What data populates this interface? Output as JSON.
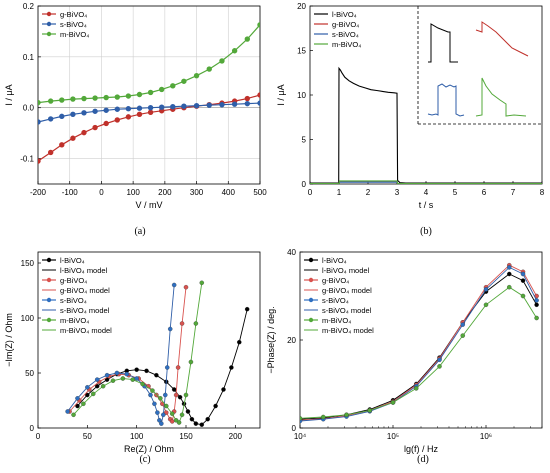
{
  "chart_data": [
    {
      "type": "line",
      "panel_label": "(a)",
      "xlabel": "V / mV",
      "ylabel": "I / μA",
      "xlim": [
        -200,
        500
      ],
      "ylim": [
        -0.15,
        0.2
      ],
      "xticks": [
        "-200",
        "-100",
        "0",
        "100",
        "200",
        "300",
        "400",
        "500"
      ],
      "yticks": [
        "-0.1",
        "0.0",
        "0.1",
        "0.2"
      ],
      "grid": true,
      "legend_position": "top-left",
      "series": [
        {
          "name": "g-BiVO₄",
          "color": "#c0312b",
          "x": [
            -200,
            -160,
            -125,
            -90,
            -55,
            -20,
            15,
            50,
            85,
            120,
            155,
            190,
            225,
            260,
            300,
            340,
            380,
            420,
            460,
            500
          ],
          "y": [
            -0.105,
            -0.088,
            -0.073,
            -0.06,
            -0.049,
            -0.039,
            -0.031,
            -0.024,
            -0.018,
            -0.013,
            -0.009,
            -0.006,
            -0.003,
            0.0,
            0.003,
            0.006,
            0.009,
            0.013,
            0.018,
            0.025
          ]
        },
        {
          "name": "s-BiVO₄",
          "color": "#2f5ea8",
          "x": [
            -200,
            -160,
            -125,
            -90,
            -55,
            -20,
            15,
            50,
            85,
            120,
            155,
            190,
            225,
            260,
            300,
            340,
            380,
            420,
            460,
            500
          ],
          "y": [
            -0.028,
            -0.022,
            -0.017,
            -0.013,
            -0.01,
            -0.007,
            -0.005,
            -0.003,
            -0.002,
            -0.001,
            0.0,
            0.001,
            0.002,
            0.003,
            0.004,
            0.005,
            0.006,
            0.007,
            0.008,
            0.009
          ]
        },
        {
          "name": "m-BiVO₄",
          "color": "#53a83a",
          "x": [
            -200,
            -160,
            -125,
            -90,
            -55,
            -20,
            15,
            50,
            85,
            120,
            155,
            190,
            225,
            260,
            300,
            340,
            380,
            420,
            460,
            500
          ],
          "y": [
            0.01,
            0.013,
            0.015,
            0.017,
            0.018,
            0.019,
            0.02,
            0.021,
            0.023,
            0.026,
            0.03,
            0.036,
            0.043,
            0.052,
            0.063,
            0.076,
            0.092,
            0.112,
            0.135,
            0.163
          ]
        }
      ]
    },
    {
      "type": "line",
      "panel_label": "(b)",
      "xlabel": "t / s",
      "ylabel": "I / μA",
      "xlim": [
        0,
        8
      ],
      "ylim": [
        0,
        20
      ],
      "xticks": [
        "0",
        "1",
        "2",
        "3",
        "4",
        "5",
        "6",
        "7",
        "8"
      ],
      "yticks": [
        "0",
        "5",
        "10",
        "15",
        "20"
      ],
      "grid": false,
      "legend_position": "top-left",
      "series": [
        {
          "name": "l-BiVO₄",
          "color": "#000000",
          "x": [
            0,
            0.99,
            1.0,
            1.05,
            1.1,
            1.2,
            1.35,
            1.5,
            1.7,
            1.9,
            2.1,
            2.3,
            2.5,
            2.7,
            2.9,
            3.0,
            3.02,
            3.1,
            3.3,
            8
          ],
          "y": [
            0.1,
            0.1,
            13.0,
            12.8,
            12.5,
            12.0,
            11.6,
            11.3,
            11.0,
            10.8,
            10.6,
            10.5,
            10.4,
            10.3,
            10.25,
            10.2,
            0.4,
            0.15,
            0.1,
            0.1
          ]
        },
        {
          "name": "g-BiVO₄",
          "color": "#c0312b",
          "x": [
            0,
            1.0,
            1.02,
            3.0,
            3.02,
            8
          ],
          "y": [
            0.05,
            0.05,
            0.3,
            0.3,
            0.05,
            0.05
          ]
        },
        {
          "name": "s-BiVO₄",
          "color": "#2f5ea8",
          "x": [
            0,
            1.0,
            1.02,
            3.0,
            3.02,
            8
          ],
          "y": [
            0.05,
            0.05,
            0.2,
            0.2,
            0.05,
            0.05
          ]
        },
        {
          "name": "m-BiVO₄",
          "color": "#53a83a",
          "x": [
            0,
            1.0,
            1.02,
            3.0,
            3.02,
            8
          ],
          "y": [
            0.05,
            0.05,
            0.35,
            0.35,
            0.05,
            0.05
          ]
        }
      ]
    },
    {
      "type": "scatter",
      "panel_label": "(c)",
      "xlabel": "Re(Z) / Ohm",
      "ylabel": "−Im(Z) / Ohm",
      "xlim": [
        0,
        225
      ],
      "ylim": [
        0,
        160
      ],
      "xticks": [
        "0",
        "50",
        "100",
        "150",
        "200"
      ],
      "yticks": [
        "0",
        "50",
        "100",
        "150"
      ],
      "grid": false,
      "legend_position": "top-left",
      "series": [
        {
          "name": "l-BiVO₄",
          "model_name": "l-BiVO₄ model",
          "color": "#000000",
          "model_color": "#000000",
          "x": [
            40,
            50,
            60,
            70,
            80,
            90,
            100,
            110,
            120,
            130,
            138,
            144,
            148,
            152,
            156,
            160,
            166,
            172,
            180,
            188,
            196,
            204,
            212
          ],
          "y": [
            20,
            30,
            38,
            44,
            49,
            52,
            53,
            52,
            48,
            42,
            35,
            28,
            22,
            15,
            8,
            4,
            3,
            8,
            20,
            35,
            55,
            78,
            108
          ]
        },
        {
          "name": "g-BiVO₄",
          "model_name": "g-BiVO₄ model",
          "color": "#d9534f",
          "model_color": "#d9534f",
          "x": [
            32,
            42,
            52,
            62,
            72,
            82,
            92,
            102,
            112,
            120,
            126,
            130,
            134,
            136,
            138,
            140,
            142,
            146,
            150
          ],
          "y": [
            15,
            25,
            35,
            42,
            47,
            49,
            48,
            45,
            38,
            30,
            22,
            14,
            8,
            6,
            15,
            30,
            55,
            95,
            128
          ]
        },
        {
          "name": "s-BiVO₄",
          "model_name": "s-BiVO₄ model",
          "color": "#2f6fc0",
          "model_color": "#2f5ea8",
          "x": [
            30,
            40,
            50,
            60,
            70,
            80,
            90,
            100,
            108,
            114,
            118,
            121,
            123,
            125,
            127,
            129,
            131,
            134,
            138
          ],
          "y": [
            15,
            27,
            37,
            44,
            48,
            50,
            49,
            45,
            38,
            30,
            22,
            14,
            7,
            4,
            12,
            30,
            55,
            90,
            130
          ]
        },
        {
          "name": "m-BiVO₄",
          "model_name": "m-BiVO₄ model",
          "color": "#53a83a",
          "model_color": "#53a83a",
          "x": [
            36,
            46,
            56,
            66,
            76,
            86,
            96,
            106,
            116,
            124,
            130,
            136,
            140,
            143,
            146,
            150,
            155,
            160,
            166
          ],
          "y": [
            12,
            22,
            31,
            38,
            43,
            45,
            44,
            40,
            34,
            27,
            20,
            13,
            7,
            5,
            12,
            30,
            60,
            95,
            132
          ]
        }
      ]
    },
    {
      "type": "scatter",
      "panel_label": "(d)",
      "xlabel": "lg(f) / Hz",
      "ylabel": "−Phase(Z) / deg.",
      "x_scale": "log",
      "xlim": [
        10000,
        4000000
      ],
      "ylim": [
        0,
        40
      ],
      "xticks": [
        "10⁴",
        "10⁵",
        "10⁶"
      ],
      "yticks": [
        "0",
        "20",
        "40"
      ],
      "grid": false,
      "legend_position": "top-left",
      "series": [
        {
          "name": "l-BiVO₄",
          "model_name": "l-BiVO₄ model",
          "color": "#000000",
          "model_color": "#000000",
          "x": [
            10000,
            17782,
            31623,
            56234,
            100000,
            177828,
            316228,
            562341,
            1000000,
            1778279,
            2500000,
            3500000
          ],
          "y": [
            2.0,
            2.3,
            3.0,
            4.2,
            6.3,
            10.0,
            16.0,
            24.0,
            31.0,
            35.0,
            33.5,
            28.0
          ]
        },
        {
          "name": "g-BiVO₄",
          "model_name": "g-BiVO₄ model",
          "color": "#d9534f",
          "model_color": "#d9534f",
          "x": [
            10000,
            17782,
            31623,
            56234,
            100000,
            177828,
            316228,
            562341,
            1000000,
            1778279,
            2500000,
            3500000
          ],
          "y": [
            1.8,
            2.1,
            2.8,
            4.0,
            6.0,
            9.8,
            15.8,
            24.0,
            32.0,
            37.0,
            35.5,
            30.0
          ]
        },
        {
          "name": "s-BiVO₄",
          "model_name": "s-BiVO₄ model",
          "color": "#2f6fc0",
          "model_color": "#2f5ea8",
          "x": [
            10000,
            17782,
            31623,
            56234,
            100000,
            177828,
            316228,
            562341,
            1000000,
            1778279,
            2500000,
            3500000
          ],
          "y": [
            1.6,
            2.0,
            2.6,
            3.8,
            5.8,
            9.5,
            15.5,
            23.5,
            31.5,
            36.5,
            35.0,
            29.0
          ]
        },
        {
          "name": "m-BiVO₄",
          "model_name": "m-BiVO₄ model",
          "color": "#53a83a",
          "model_color": "#53a83a",
          "x": [
            10000,
            17782,
            31623,
            56234,
            100000,
            177828,
            316228,
            562341,
            1000000,
            1778279,
            2500000,
            3500000
          ],
          "y": [
            2.2,
            2.5,
            3.0,
            4.0,
            5.8,
            9.0,
            14.0,
            21.0,
            28.0,
            32.0,
            30.0,
            25.0
          ]
        }
      ]
    }
  ]
}
